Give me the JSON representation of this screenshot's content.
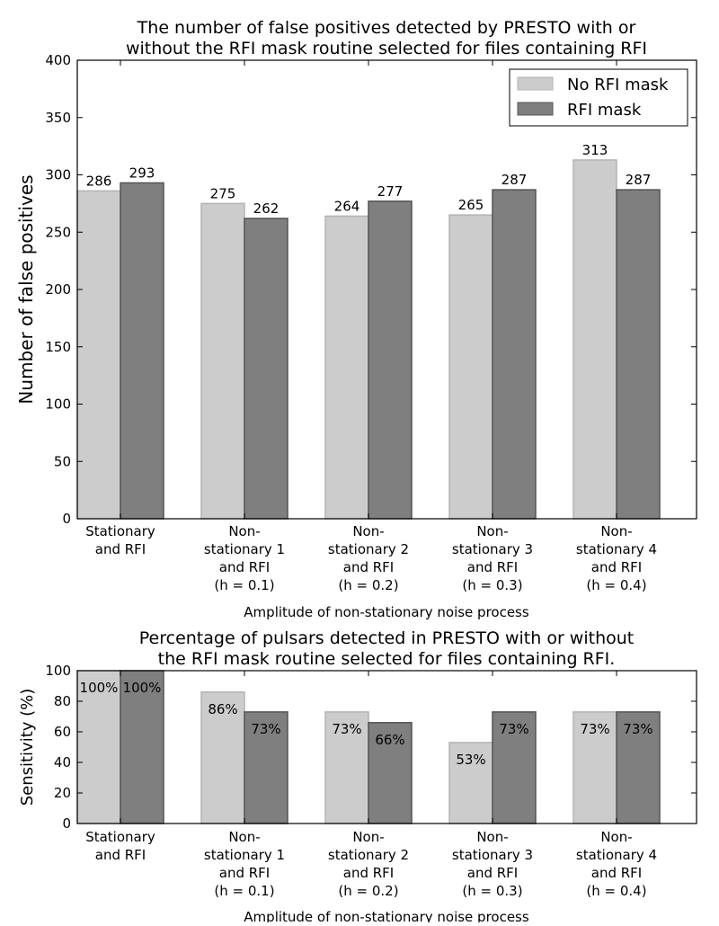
{
  "chart_data": [
    {
      "type": "bar",
      "title": "The number of false positives detected by PRESTO with or without the RFI mask routine selected for files containing RFI",
      "title_lines": [
        "The number of false positives detected by PRESTO with or",
        "without the RFI mask routine selected for files containing RFI"
      ],
      "ylabel": "Number of false positives",
      "xlabel": "Amplitude of non-stationary noise process",
      "ylim": [
        0,
        400
      ],
      "yticks": [
        0,
        50,
        100,
        150,
        200,
        250,
        300,
        350,
        400
      ],
      "categories": [
        [
          "Stationary",
          "and RFI"
        ],
        [
          "Non-",
          "stationary 1",
          "and RFI",
          "(h = 0.1)"
        ],
        [
          "Non-",
          "stationary 2",
          "and RFI",
          "(h = 0.2)"
        ],
        [
          "Non-",
          "stationary 3",
          "and RFI",
          "(h = 0.3)"
        ],
        [
          "Non-",
          "stationary 4",
          "and RFI",
          "(h = 0.4)"
        ]
      ],
      "series": [
        {
          "name": "No RFI mask",
          "color": "#cccccc",
          "edge": "#b3b3b3",
          "values": [
            286,
            275,
            264,
            265,
            313
          ],
          "labels": [
            "286",
            "275",
            "264",
            "265",
            "313"
          ]
        },
        {
          "name": "RFI mask",
          "color": "#7f7f7f",
          "edge": "#555555",
          "values": [
            293,
            262,
            277,
            287,
            287
          ],
          "labels": [
            "293",
            "262",
            "277",
            "287",
            "287"
          ]
        }
      ],
      "legend": "top-right",
      "label_position": "above"
    },
    {
      "type": "bar",
      "title": "Percentage of pulsars detected in PRESTO with or without the RFI mask routine selected for files containing RFI.",
      "title_lines": [
        "Percentage of pulsars detected in PRESTO with or without",
        "the RFI mask routine selected for files containing RFI."
      ],
      "ylabel": "Sensitivity (%)",
      "xlabel": "Amplitude of non-stationary noise process",
      "ylim": [
        0,
        100
      ],
      "yticks": [
        0,
        20,
        40,
        60,
        80,
        100
      ],
      "categories": [
        [
          "Stationary",
          "and RFI"
        ],
        [
          "Non-",
          "stationary 1",
          "and RFI",
          "(h = 0.1)"
        ],
        [
          "Non-",
          "stationary 2",
          "and RFI",
          "(h = 0.2)"
        ],
        [
          "Non-",
          "stationary 3",
          "and RFI",
          "(h = 0.3)"
        ],
        [
          "Non-",
          "stationary 4",
          "and RFI",
          "(h = 0.4)"
        ]
      ],
      "series": [
        {
          "name": "No RFI mask",
          "color": "#cccccc",
          "edge": "#b3b3b3",
          "values": [
            100,
            86,
            73,
            53,
            73
          ],
          "labels": [
            "100%",
            "86%",
            "73%",
            "53%",
            "73%"
          ]
        },
        {
          "name": "RFI mask",
          "color": "#7f7f7f",
          "edge": "#555555",
          "values": [
            100,
            73,
            66,
            73,
            73
          ],
          "labels": [
            "100%",
            "73%",
            "66%",
            "73%",
            "73%"
          ]
        }
      ],
      "label_position": "inside-top"
    }
  ]
}
